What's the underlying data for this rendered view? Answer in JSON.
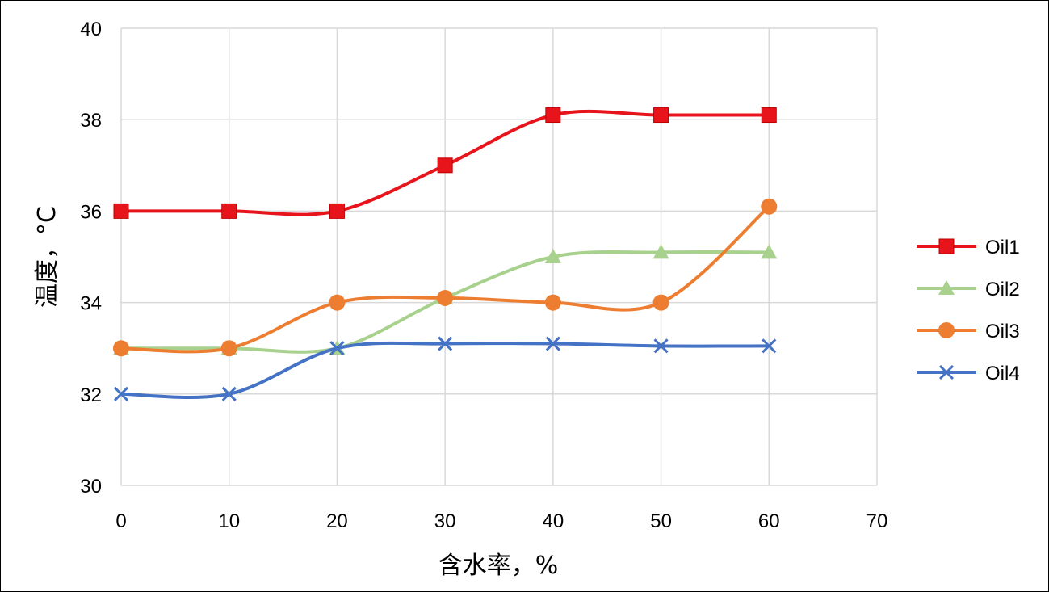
{
  "chart_data": {
    "type": "line",
    "title": "",
    "xlabel": "含水率，%",
    "ylabel": "温度，°C",
    "xlim": [
      0,
      70
    ],
    "ylim": [
      30,
      40
    ],
    "xticks": [
      0,
      10,
      20,
      30,
      40,
      50,
      60,
      70
    ],
    "yticks": [
      30,
      32,
      34,
      36,
      38,
      40
    ],
    "grid": true,
    "smooth": true,
    "legend_position": "right",
    "x": [
      0,
      10,
      20,
      30,
      40,
      50,
      60
    ],
    "series": [
      {
        "name": "Oil1",
        "color": "#e8141c",
        "marker": "square",
        "values": [
          36.0,
          36.0,
          36.0,
          37.0,
          38.1,
          38.1,
          38.1
        ]
      },
      {
        "name": "Oil2",
        "color": "#a9d18e",
        "marker": "triangle",
        "values": [
          33.0,
          33.0,
          33.0,
          34.1,
          35.0,
          35.1,
          35.1
        ]
      },
      {
        "name": "Oil3",
        "color": "#ed7d31",
        "marker": "circle",
        "values": [
          33.0,
          33.0,
          34.0,
          34.1,
          34.0,
          34.0,
          36.1
        ]
      },
      {
        "name": "Oil4",
        "color": "#4472c4",
        "marker": "x",
        "values": [
          32.0,
          32.0,
          33.0,
          33.1,
          33.1,
          33.05,
          33.05
        ]
      }
    ]
  }
}
